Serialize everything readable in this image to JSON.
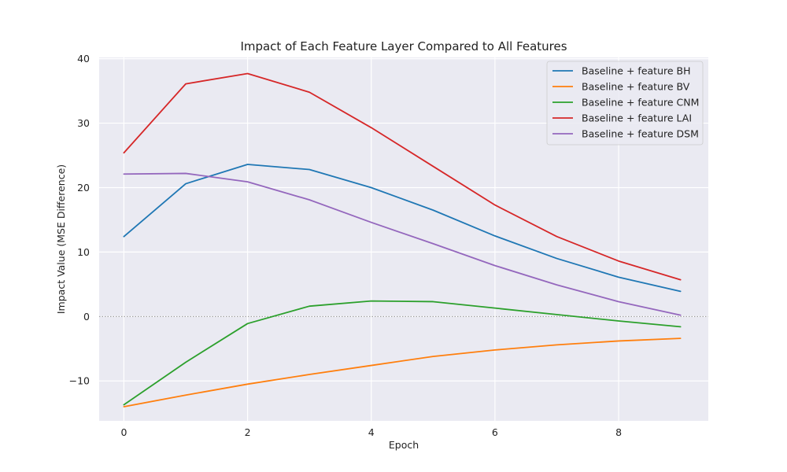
{
  "chart_data": {
    "type": "line",
    "title": "Impact of Each Feature Layer Compared to All Features",
    "xlabel": "Epoch",
    "ylabel": "Impact Value (MSE Difference)",
    "xlim": [
      -0.4,
      9.45
    ],
    "ylim": [
      -16.2,
      40.2
    ],
    "xticks": [
      0,
      2,
      4,
      6,
      8
    ],
    "yticks": [
      -10,
      0,
      10,
      20,
      30,
      40
    ],
    "xtick_labels": [
      "0",
      "2",
      "4",
      "6",
      "8"
    ],
    "ytick_labels": [
      "−10",
      "0",
      "10",
      "20",
      "30",
      "40"
    ],
    "grid": true,
    "reference_line": {
      "y": 0,
      "style": "dotted",
      "color": "#808080"
    },
    "legend_position": "top-right",
    "background": "#eaeaf2",
    "x": [
      0,
      1,
      2,
      3,
      4,
      5,
      6,
      7,
      8,
      9
    ],
    "series": [
      {
        "name": "Baseline + feature BH",
        "color": "#1f77b4",
        "values": [
          12.4,
          20.6,
          23.6,
          22.8,
          20.0,
          16.5,
          12.5,
          9.0,
          6.1,
          3.9
        ]
      },
      {
        "name": "Baseline + feature BV",
        "color": "#ff7f0e",
        "values": [
          -14.0,
          -12.2,
          -10.5,
          -9.0,
          -7.6,
          -6.2,
          -5.2,
          -4.4,
          -3.8,
          -3.4
        ]
      },
      {
        "name": "Baseline + feature CNM",
        "color": "#2ca02c",
        "values": [
          -13.7,
          -7.1,
          -1.1,
          1.6,
          2.4,
          2.3,
          1.3,
          0.3,
          -0.7,
          -1.6
        ]
      },
      {
        "name": "Baseline + feature LAI",
        "color": "#d62728",
        "values": [
          25.4,
          36.1,
          37.7,
          34.8,
          29.3,
          23.3,
          17.3,
          12.4,
          8.6,
          5.7
        ]
      },
      {
        "name": "Baseline + feature DSM",
        "color": "#9467bd",
        "values": [
          22.1,
          22.2,
          20.9,
          18.1,
          14.6,
          11.3,
          7.9,
          4.9,
          2.3,
          0.2
        ]
      }
    ]
  }
}
